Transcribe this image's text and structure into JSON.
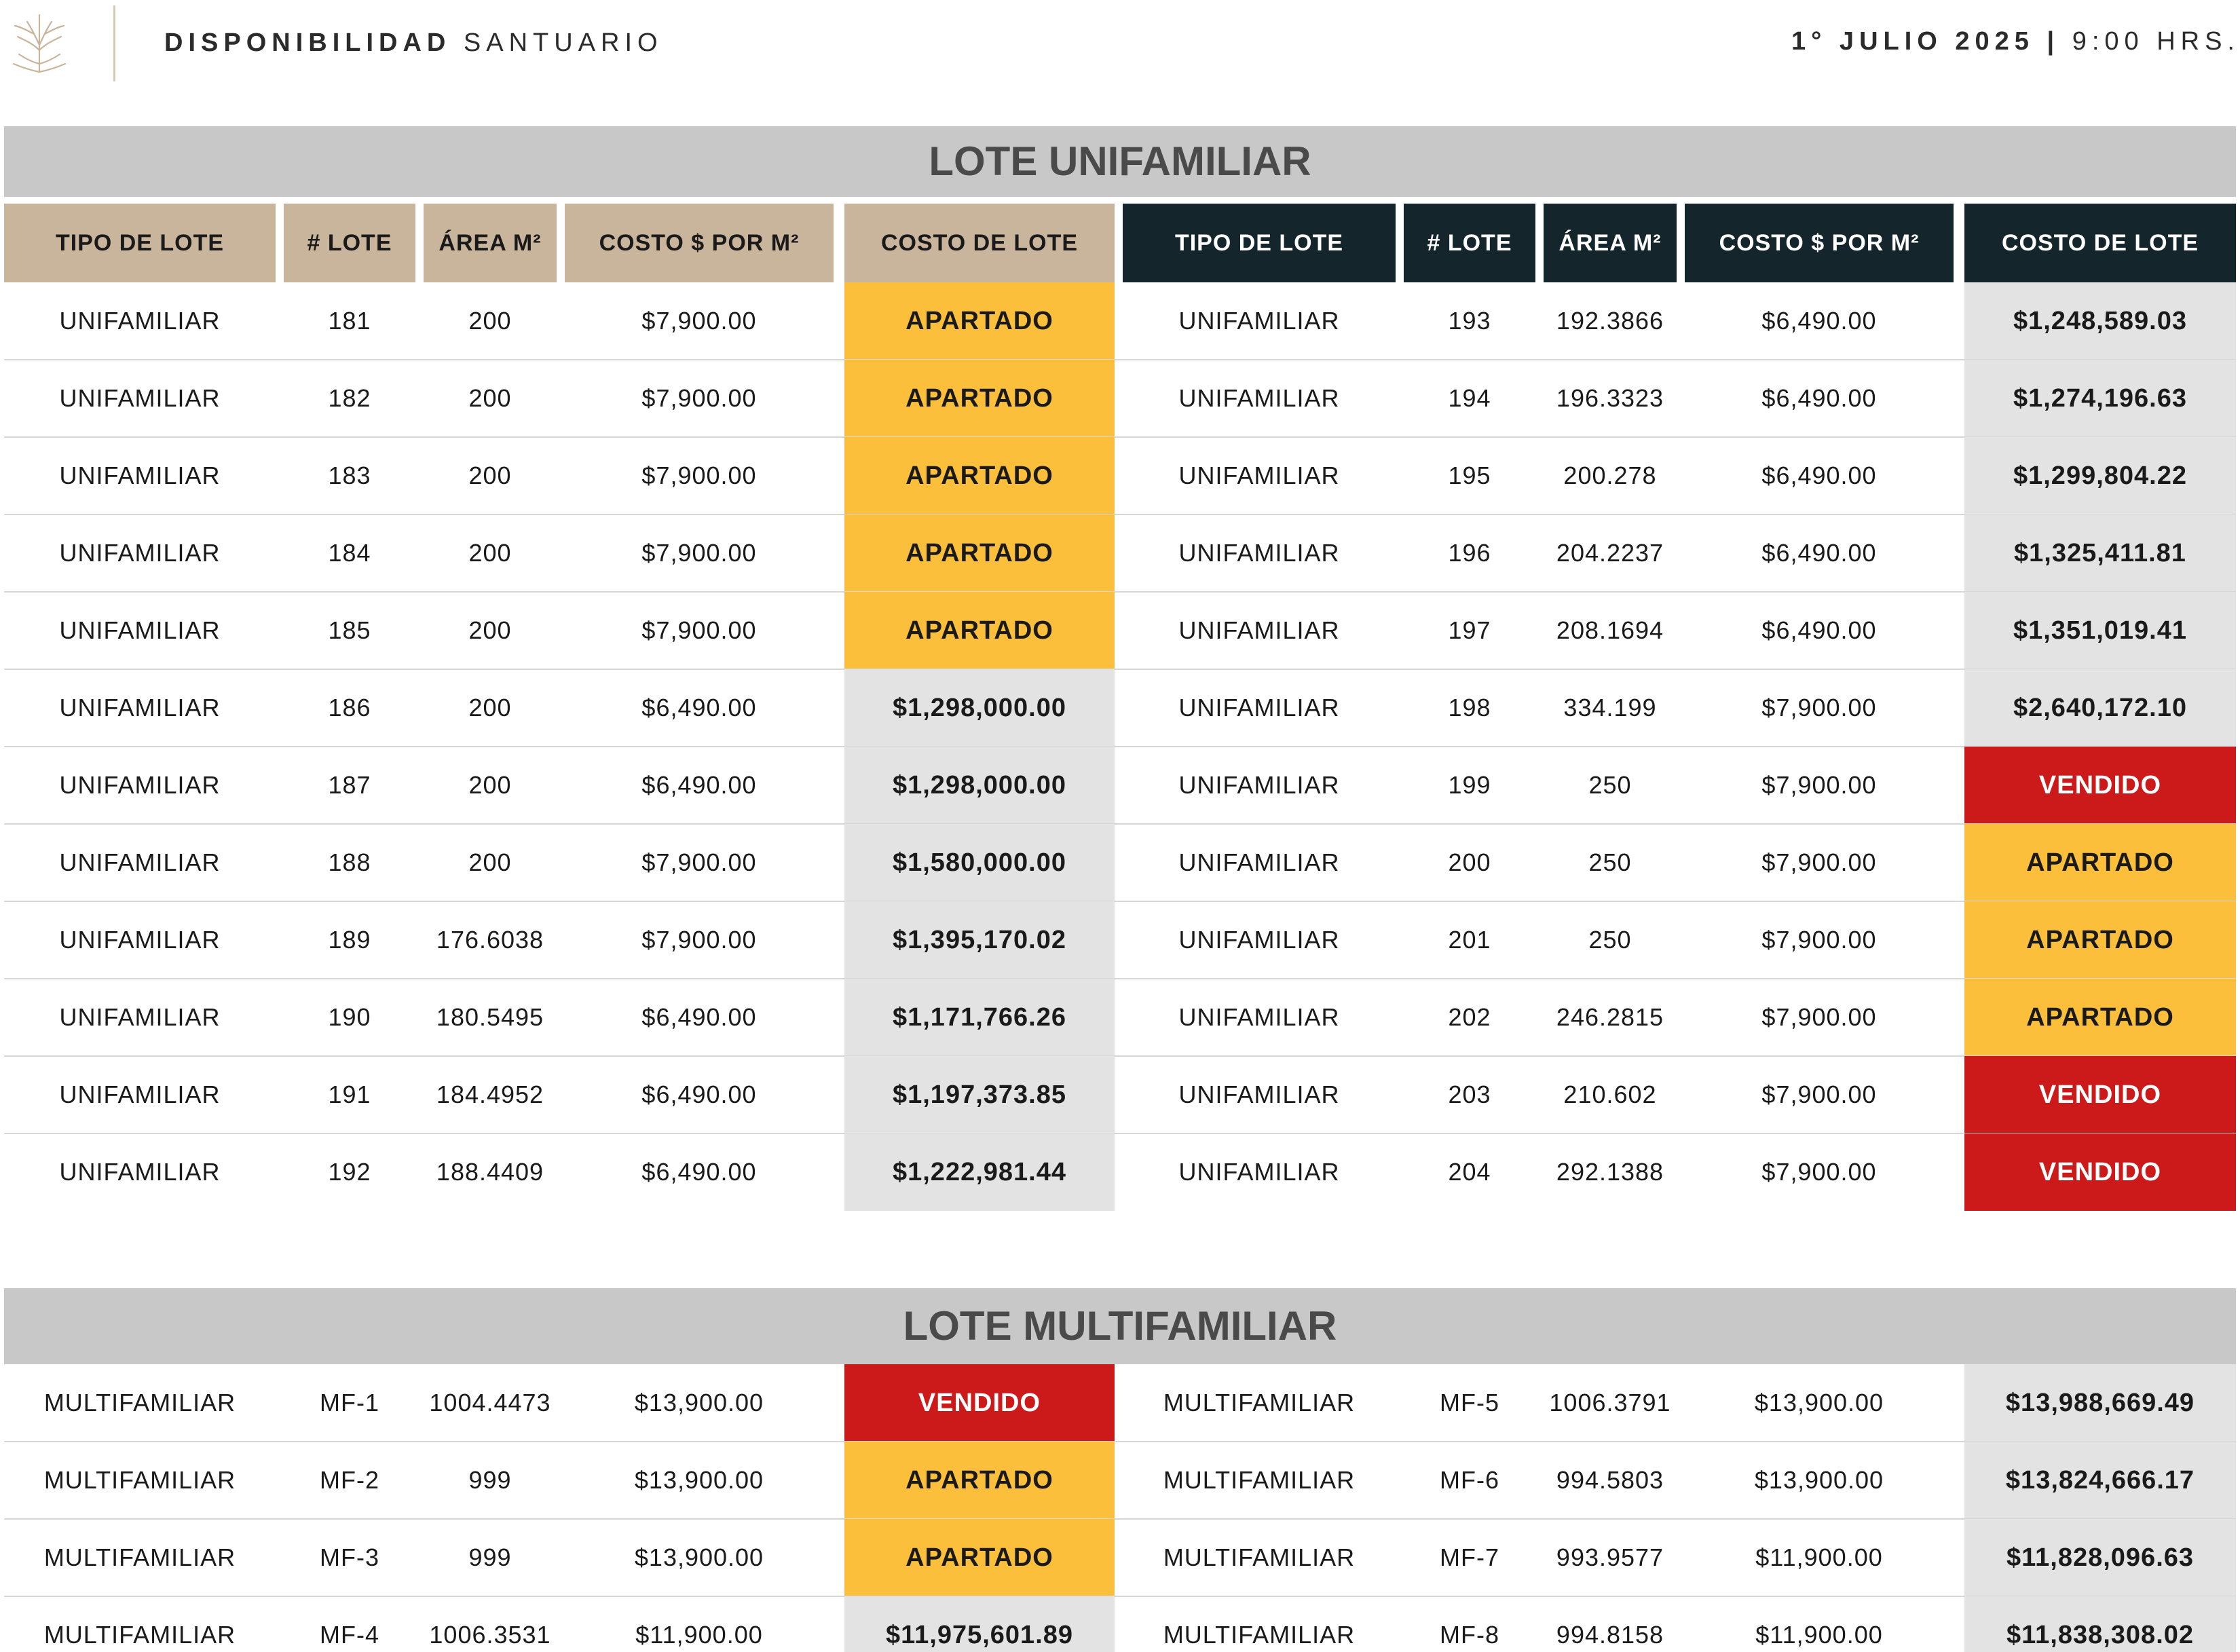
{
  "header": {
    "title_bold": "DISPONIBILIDAD",
    "title_light": "SANTUARIO",
    "date_bold": "1° JULIO 2025 |",
    "time": "9:00 HRS."
  },
  "colors": {
    "tan_header": "#c9b59b",
    "dark_header": "#15252c",
    "apartado": "#fbbf3b",
    "vendido": "#cc1a1a",
    "price_bg": "#e3e3e3",
    "section_bg": "#c8c8c8"
  },
  "unifamiliar": {
    "section_title": "LOTE UNIFAMILIAR",
    "headers": [
      "TIPO DE LOTE",
      "# LOTE",
      "ÁREA M²",
      "COSTO $ POR M²",
      "COSTO DE LOTE"
    ],
    "left_rows": [
      {
        "tipo": "UNIFAMILIAR",
        "lote": "181",
        "area": "200",
        "costo_m2": "$7,900.00",
        "costo": "APARTADO",
        "status": "apartado"
      },
      {
        "tipo": "UNIFAMILIAR",
        "lote": "182",
        "area": "200",
        "costo_m2": "$7,900.00",
        "costo": "APARTADO",
        "status": "apartado"
      },
      {
        "tipo": "UNIFAMILIAR",
        "lote": "183",
        "area": "200",
        "costo_m2": "$7,900.00",
        "costo": "APARTADO",
        "status": "apartado"
      },
      {
        "tipo": "UNIFAMILIAR",
        "lote": "184",
        "area": "200",
        "costo_m2": "$7,900.00",
        "costo": "APARTADO",
        "status": "apartado"
      },
      {
        "tipo": "UNIFAMILIAR",
        "lote": "185",
        "area": "200",
        "costo_m2": "$7,900.00",
        "costo": "APARTADO",
        "status": "apartado"
      },
      {
        "tipo": "UNIFAMILIAR",
        "lote": "186",
        "area": "200",
        "costo_m2": "$6,490.00",
        "costo": "$1,298,000.00",
        "status": "price"
      },
      {
        "tipo": "UNIFAMILIAR",
        "lote": "187",
        "area": "200",
        "costo_m2": "$6,490.00",
        "costo": "$1,298,000.00",
        "status": "price"
      },
      {
        "tipo": "UNIFAMILIAR",
        "lote": "188",
        "area": "200",
        "costo_m2": "$7,900.00",
        "costo": "$1,580,000.00",
        "status": "price"
      },
      {
        "tipo": "UNIFAMILIAR",
        "lote": "189",
        "area": "176.6038",
        "costo_m2": "$7,900.00",
        "costo": "$1,395,170.02",
        "status": "price"
      },
      {
        "tipo": "UNIFAMILIAR",
        "lote": "190",
        "area": "180.5495",
        "costo_m2": "$6,490.00",
        "costo": "$1,171,766.26",
        "status": "price"
      },
      {
        "tipo": "UNIFAMILIAR",
        "lote": "191",
        "area": "184.4952",
        "costo_m2": "$6,490.00",
        "costo": "$1,197,373.85",
        "status": "price"
      },
      {
        "tipo": "UNIFAMILIAR",
        "lote": "192",
        "area": "188.4409",
        "costo_m2": "$6,490.00",
        "costo": "$1,222,981.44",
        "status": "price"
      }
    ],
    "right_rows": [
      {
        "tipo": "UNIFAMILIAR",
        "lote": "193",
        "area": "192.3866",
        "costo_m2": "$6,490.00",
        "costo": "$1,248,589.03",
        "status": "price"
      },
      {
        "tipo": "UNIFAMILIAR",
        "lote": "194",
        "area": "196.3323",
        "costo_m2": "$6,490.00",
        "costo": "$1,274,196.63",
        "status": "price"
      },
      {
        "tipo": "UNIFAMILIAR",
        "lote": "195",
        "area": "200.278",
        "costo_m2": "$6,490.00",
        "costo": "$1,299,804.22",
        "status": "price"
      },
      {
        "tipo": "UNIFAMILIAR",
        "lote": "196",
        "area": "204.2237",
        "costo_m2": "$6,490.00",
        "costo": "$1,325,411.81",
        "status": "price"
      },
      {
        "tipo": "UNIFAMILIAR",
        "lote": "197",
        "area": "208.1694",
        "costo_m2": "$6,490.00",
        "costo": "$1,351,019.41",
        "status": "price"
      },
      {
        "tipo": "UNIFAMILIAR",
        "lote": "198",
        "area": "334.199",
        "costo_m2": "$7,900.00",
        "costo": "$2,640,172.10",
        "status": "price"
      },
      {
        "tipo": "UNIFAMILIAR",
        "lote": "199",
        "area": "250",
        "costo_m2": "$7,900.00",
        "costo": "VENDIDO",
        "status": "vendido"
      },
      {
        "tipo": "UNIFAMILIAR",
        "lote": "200",
        "area": "250",
        "costo_m2": "$7,900.00",
        "costo": "APARTADO",
        "status": "apartado"
      },
      {
        "tipo": "UNIFAMILIAR",
        "lote": "201",
        "area": "250",
        "costo_m2": "$7,900.00",
        "costo": "APARTADO",
        "status": "apartado"
      },
      {
        "tipo": "UNIFAMILIAR",
        "lote": "202",
        "area": "246.2815",
        "costo_m2": "$7,900.00",
        "costo": "APARTADO",
        "status": "apartado"
      },
      {
        "tipo": "UNIFAMILIAR",
        "lote": "203",
        "area": "210.602",
        "costo_m2": "$7,900.00",
        "costo": "VENDIDO",
        "status": "vendido"
      },
      {
        "tipo": "UNIFAMILIAR",
        "lote": "204",
        "area": "292.1388",
        "costo_m2": "$7,900.00",
        "costo": "VENDIDO",
        "status": "vendido"
      }
    ]
  },
  "multifamiliar": {
    "section_title": "LOTE MULTIFAMILIAR",
    "left_rows": [
      {
        "tipo": "MULTIFAMILIAR",
        "lote": "MF-1",
        "area": "1004.4473",
        "costo_m2": "$13,900.00",
        "costo": "VENDIDO",
        "status": "vendido"
      },
      {
        "tipo": "MULTIFAMILIAR",
        "lote": "MF-2",
        "area": "999",
        "costo_m2": "$13,900.00",
        "costo": "APARTADO",
        "status": "apartado"
      },
      {
        "tipo": "MULTIFAMILIAR",
        "lote": "MF-3",
        "area": "999",
        "costo_m2": "$13,900.00",
        "costo": "APARTADO",
        "status": "apartado"
      },
      {
        "tipo": "MULTIFAMILIAR",
        "lote": "MF-4",
        "area": "1006.3531",
        "costo_m2": "$11,900.00",
        "costo": "$11,975,601.89",
        "status": "price"
      }
    ],
    "right_rows": [
      {
        "tipo": "MULTIFAMILIAR",
        "lote": "MF-5",
        "area": "1006.3791",
        "costo_m2": "$13,900.00",
        "costo": "$13,988,669.49",
        "status": "price"
      },
      {
        "tipo": "MULTIFAMILIAR",
        "lote": "MF-6",
        "area": "994.5803",
        "costo_m2": "$13,900.00",
        "costo": "$13,824,666.17",
        "status": "price"
      },
      {
        "tipo": "MULTIFAMILIAR",
        "lote": "MF-7",
        "area": "993.9577",
        "costo_m2": "$11,900.00",
        "costo": "$11,828,096.63",
        "status": "price"
      },
      {
        "tipo": "MULTIFAMILIAR",
        "lote": "MF-8",
        "area": "994.8158",
        "costo_m2": "$11,900.00",
        "costo": "$11,838,308.02",
        "status": "price"
      }
    ]
  }
}
